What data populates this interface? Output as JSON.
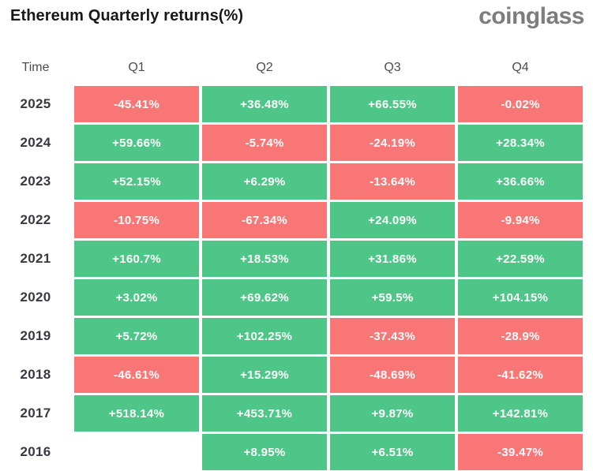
{
  "header": {
    "title": "Ethereum Quarterly returns(%)",
    "brand": "coinglass"
  },
  "colors": {
    "positive": "#4DC687",
    "negative": "#F87676",
    "cell_text": "#ffffff"
  },
  "table": {
    "columns": [
      "Time",
      "Q1",
      "Q2",
      "Q3",
      "Q4"
    ],
    "rows": [
      {
        "year": "2025",
        "cells": [
          "-45.41%",
          "+36.48%",
          "+66.55%",
          "-0.02%"
        ]
      },
      {
        "year": "2024",
        "cells": [
          "+59.66%",
          "-5.74%",
          "-24.19%",
          "+28.34%"
        ]
      },
      {
        "year": "2023",
        "cells": [
          "+52.15%",
          "+6.29%",
          "-13.64%",
          "+36.66%"
        ]
      },
      {
        "year": "2022",
        "cells": [
          "-10.75%",
          "-67.34%",
          "+24.09%",
          "-9.94%"
        ]
      },
      {
        "year": "2021",
        "cells": [
          "+160.7%",
          "+18.53%",
          "+31.86%",
          "+22.59%"
        ]
      },
      {
        "year": "2020",
        "cells": [
          "+3.02%",
          "+69.62%",
          "+59.5%",
          "+104.15%"
        ]
      },
      {
        "year": "2019",
        "cells": [
          "+5.72%",
          "+102.25%",
          "-37.43%",
          "-28.9%"
        ]
      },
      {
        "year": "2018",
        "cells": [
          "-46.61%",
          "+15.29%",
          "-48.69%",
          "-41.62%"
        ]
      },
      {
        "year": "2017",
        "cells": [
          "+518.14%",
          "+453.71%",
          "+9.87%",
          "+142.81%"
        ]
      },
      {
        "year": "2016",
        "cells": [
          null,
          "+8.95%",
          "+6.51%",
          "-39.47%"
        ]
      }
    ]
  },
  "chart_data": {
    "type": "heatmap",
    "title": "Ethereum Quarterly returns(%)",
    "columns": [
      "Q1",
      "Q2",
      "Q3",
      "Q4"
    ],
    "rows": [
      "2025",
      "2024",
      "2023",
      "2022",
      "2021",
      "2020",
      "2019",
      "2018",
      "2017",
      "2016"
    ],
    "values": [
      [
        -45.41,
        36.48,
        66.55,
        -0.02
      ],
      [
        59.66,
        -5.74,
        -24.19,
        28.34
      ],
      [
        52.15,
        6.29,
        -13.64,
        36.66
      ],
      [
        -10.75,
        -67.34,
        24.09,
        -9.94
      ],
      [
        160.7,
        18.53,
        31.86,
        22.59
      ],
      [
        3.02,
        69.62,
        59.5,
        104.15
      ],
      [
        5.72,
        102.25,
        -37.43,
        -28.9
      ],
      [
        -46.61,
        15.29,
        -48.69,
        -41.62
      ],
      [
        518.14,
        453.71,
        9.87,
        142.81
      ],
      [
        null,
        8.95,
        6.51,
        -39.47
      ]
    ],
    "value_unit": "%",
    "positive_color": "#4DC687",
    "negative_color": "#F87676",
    "legend": "green = positive quarterly return, red = negative quarterly return"
  }
}
